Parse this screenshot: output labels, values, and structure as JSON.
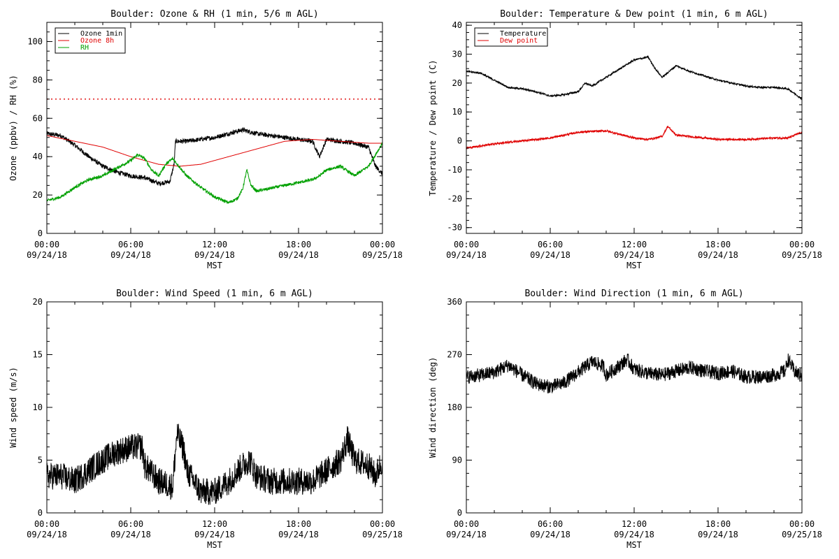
{
  "chart_data": [
    {
      "type": "line",
      "title": "Boulder: Ozone & RH (1 min, 5/6 m AGL)",
      "xlabel": "MST",
      "ylabel": "Ozone (ppbv) / RH (%)",
      "x_ticks": [
        {
          "time": "00:00",
          "date": "09/24/18"
        },
        {
          "time": "06:00",
          "date": "09/24/18"
        },
        {
          "time": "12:00",
          "date": "09/24/18"
        },
        {
          "time": "18:00",
          "date": "09/24/18"
        },
        {
          "time": "00:00",
          "date": "09/25/18"
        }
      ],
      "xlim": [
        0,
        24
      ],
      "ylim": [
        0,
        110
      ],
      "y_ticks": [
        0,
        20,
        40,
        60,
        80,
        100
      ],
      "legend_position": "top-left",
      "reference_line": {
        "y": 70,
        "style": "dotted",
        "color": "#e00000"
      },
      "series": [
        {
          "name": "Ozone 1min",
          "color": "#000000",
          "noise": 1.2,
          "points": [
            [
              0,
              52
            ],
            [
              1,
              51
            ],
            [
              2,
              46
            ],
            [
              3,
              40
            ],
            [
              4,
              35
            ],
            [
              5,
              32
            ],
            [
              6,
              30
            ],
            [
              7,
              29
            ],
            [
              8,
              26
            ],
            [
              8.8,
              27
            ],
            [
              9.1,
              36
            ],
            [
              9.2,
              48
            ],
            [
              10,
              48
            ],
            [
              11,
              49
            ],
            [
              12,
              50
            ],
            [
              13,
              52
            ],
            [
              14,
              54
            ],
            [
              15,
              52
            ],
            [
              16,
              51
            ],
            [
              17,
              50
            ],
            [
              18,
              49
            ],
            [
              19,
              48
            ],
            [
              19.5,
              40
            ],
            [
              20,
              49
            ],
            [
              21,
              48
            ],
            [
              22,
              47
            ],
            [
              23,
              45
            ],
            [
              23.5,
              35
            ],
            [
              24,
              31
            ]
          ]
        },
        {
          "name": "Ozone 8h",
          "color": "#e00000",
          "noise": 0,
          "points": [
            [
              0,
              51
            ],
            [
              2,
              48
            ],
            [
              4,
              45
            ],
            [
              6,
              40
            ],
            [
              8,
              36
            ],
            [
              9.5,
              35
            ],
            [
              11,
              36
            ],
            [
              13,
              40
            ],
            [
              15,
              44
            ],
            [
              17,
              48
            ],
            [
              19,
              49
            ],
            [
              21,
              48
            ],
            [
              23,
              47
            ],
            [
              24,
              47
            ]
          ]
        },
        {
          "name": "RH",
          "color": "#00a000",
          "noise": 0.8,
          "points": [
            [
              0,
              17
            ],
            [
              1,
              19
            ],
            [
              2,
              24
            ],
            [
              3,
              28
            ],
            [
              4,
              30
            ],
            [
              5,
              34
            ],
            [
              6,
              38
            ],
            [
              6.5,
              41
            ],
            [
              7,
              39
            ],
            [
              7.5,
              33
            ],
            [
              8,
              30
            ],
            [
              8.5,
              36
            ],
            [
              9,
              39
            ],
            [
              10,
              30
            ],
            [
              11,
              24
            ],
            [
              12,
              19
            ],
            [
              13,
              16
            ],
            [
              13.6,
              18
            ],
            [
              14,
              23
            ],
            [
              14.3,
              33
            ],
            [
              14.6,
              25
            ],
            [
              15,
              22
            ],
            [
              17,
              25
            ],
            [
              19,
              28
            ],
            [
              19.5,
              30
            ],
            [
              20,
              33
            ],
            [
              21,
              35
            ],
            [
              22,
              30
            ],
            [
              23,
              35
            ],
            [
              23.5,
              41
            ],
            [
              24,
              47
            ]
          ]
        }
      ]
    },
    {
      "type": "line",
      "title": "Boulder: Temperature & Dew point (1 min, 6 m AGL)",
      "xlabel": "MST",
      "ylabel": "Temperature / Dew point (C)",
      "x_ticks": [
        {
          "time": "00:00",
          "date": "09/24/18"
        },
        {
          "time": "06:00",
          "date": "09/24/18"
        },
        {
          "time": "12:00",
          "date": "09/24/18"
        },
        {
          "time": "18:00",
          "date": "09/24/18"
        },
        {
          "time": "00:00",
          "date": "09/25/18"
        }
      ],
      "xlim": [
        0,
        24
      ],
      "ylim": [
        -32,
        41
      ],
      "y_ticks": [
        -30,
        -20,
        -10,
        0,
        10,
        20,
        30,
        40
      ],
      "legend_position": "top-left",
      "series": [
        {
          "name": "Temperature",
          "color": "#000000",
          "noise": 0.3,
          "points": [
            [
              0,
              24
            ],
            [
              1,
              23.5
            ],
            [
              2,
              21
            ],
            [
              3,
              18.5
            ],
            [
              4,
              18
            ],
            [
              5,
              17
            ],
            [
              6,
              15.5
            ],
            [
              7,
              16
            ],
            [
              8,
              17
            ],
            [
              8.5,
              20
            ],
            [
              9,
              19
            ],
            [
              10,
              22
            ],
            [
              11,
              25
            ],
            [
              12,
              28
            ],
            [
              13,
              29
            ],
            [
              13.5,
              25
            ],
            [
              14,
              22
            ],
            [
              15,
              26
            ],
            [
              16,
              24
            ],
            [
              17,
              22.5
            ],
            [
              18,
              21
            ],
            [
              19,
              20
            ],
            [
              20,
              19
            ],
            [
              21,
              18.5
            ],
            [
              22,
              18.5
            ],
            [
              23,
              18
            ],
            [
              24,
              14.5
            ]
          ]
        },
        {
          "name": "Dew point",
          "color": "#e00000",
          "noise": 0.35,
          "points": [
            [
              0,
              -2.5
            ],
            [
              2,
              -1
            ],
            [
              4,
              0
            ],
            [
              6,
              1
            ],
            [
              8,
              3
            ],
            [
              10,
              3.5
            ],
            [
              12,
              1
            ],
            [
              13,
              0.5
            ],
            [
              14,
              1.5
            ],
            [
              14.4,
              5
            ],
            [
              15,
              2
            ],
            [
              16,
              1.5
            ],
            [
              17,
              1
            ],
            [
              18,
              0.5
            ],
            [
              20,
              0.5
            ],
            [
              22,
              1
            ],
            [
              23,
              1
            ],
            [
              24,
              3
            ]
          ]
        }
      ]
    },
    {
      "type": "line",
      "title": "Boulder: Wind Speed (1 min, 6 m AGL)",
      "xlabel": "MST",
      "ylabel": "Wind speed (m/s)",
      "x_ticks": [
        {
          "time": "00:00",
          "date": "09/24/18"
        },
        {
          "time": "06:00",
          "date": "09/24/18"
        },
        {
          "time": "12:00",
          "date": "09/24/18"
        },
        {
          "time": "18:00",
          "date": "09/24/18"
        },
        {
          "time": "00:00",
          "date": "09/25/18"
        }
      ],
      "xlim": [
        0,
        24
      ],
      "ylim": [
        0,
        20
      ],
      "y_ticks": [
        0,
        5,
        10,
        15,
        20
      ],
      "series": [
        {
          "name": "",
          "color": "#000000",
          "noise": 1.3,
          "points": [
            [
              0,
              3.5
            ],
            [
              1,
              3.5
            ],
            [
              2,
              3
            ],
            [
              3,
              4
            ],
            [
              4,
              5
            ],
            [
              5,
              5.8
            ],
            [
              6,
              6.2
            ],
            [
              6.8,
              6.3
            ],
            [
              7,
              4.5
            ],
            [
              8,
              3
            ],
            [
              9,
              2.5
            ],
            [
              9.3,
              7.5
            ],
            [
              9.8,
              6
            ],
            [
              10,
              4
            ],
            [
              11,
              2
            ],
            [
              12,
              2
            ],
            [
              13,
              3
            ],
            [
              14,
              4.5
            ],
            [
              14.5,
              5
            ],
            [
              15,
              3.5
            ],
            [
              16,
              3
            ],
            [
              17,
              3
            ],
            [
              18,
              3
            ],
            [
              19,
              3
            ],
            [
              20,
              4
            ],
            [
              21,
              5
            ],
            [
              21.5,
              7
            ],
            [
              22,
              5
            ],
            [
              23,
              4.5
            ],
            [
              23.5,
              3.5
            ],
            [
              24,
              5
            ]
          ]
        }
      ]
    },
    {
      "type": "line",
      "title": "Boulder: Wind Direction (1 min, 6 m AGL)",
      "xlabel": "MST",
      "ylabel": "Wind direction (deg)",
      "x_ticks": [
        {
          "time": "00:00",
          "date": "09/24/18"
        },
        {
          "time": "06:00",
          "date": "09/24/18"
        },
        {
          "time": "12:00",
          "date": "09/24/18"
        },
        {
          "time": "18:00",
          "date": "09/24/18"
        },
        {
          "time": "00:00",
          "date": "09/25/18"
        }
      ],
      "xlim": [
        0,
        24
      ],
      "ylim": [
        0,
        360
      ],
      "y_ticks": [
        0,
        90,
        180,
        270,
        360
      ],
      "series": [
        {
          "name": "",
          "color": "#000000",
          "noise": 12,
          "points": [
            [
              0,
              232
            ],
            [
              1,
              235
            ],
            [
              2,
              240
            ],
            [
              3,
              252
            ],
            [
              4,
              235
            ],
            [
              5,
              220
            ],
            [
              6,
              215
            ],
            [
              7,
              222
            ],
            [
              8,
              240
            ],
            [
              9,
              258
            ],
            [
              9.8,
              250
            ],
            [
              10,
              235
            ],
            [
              11,
              252
            ],
            [
              11.5,
              262
            ],
            [
              12,
              245
            ],
            [
              13,
              238
            ],
            [
              14,
              235
            ],
            [
              15,
              242
            ],
            [
              16,
              248
            ],
            [
              17,
              242
            ],
            [
              18,
              238
            ],
            [
              19,
              242
            ],
            [
              20,
              232
            ],
            [
              21,
              232
            ],
            [
              22,
              235
            ],
            [
              22.8,
              242
            ],
            [
              23,
              262
            ],
            [
              23.5,
              240
            ],
            [
              24,
              234
            ]
          ]
        }
      ]
    }
  ]
}
